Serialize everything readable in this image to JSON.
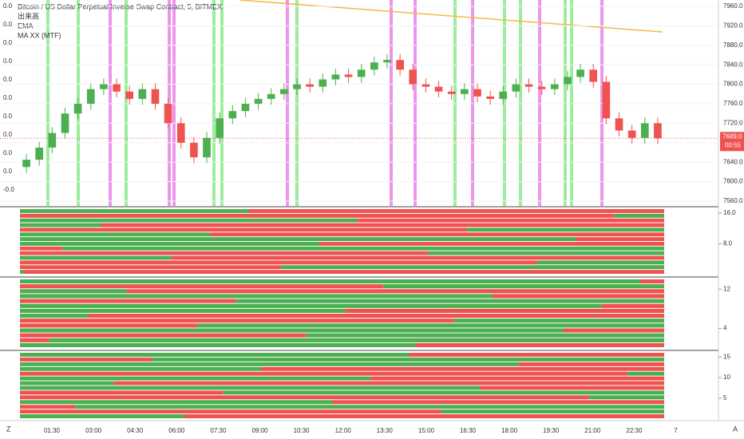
{
  "chart_data": {
    "type": "candlestick",
    "title": "Bitcoin / US Dollar Perpetual Inverse Swap Contract, 5, BITMEX",
    "indicators": [
      "出来高",
      "EMA",
      "MA XX (MTF)"
    ],
    "up_color": "#4caf50",
    "down_color": "#ef5350",
    "open": [
      7630,
      7645,
      7670,
      7700,
      7740,
      7760,
      7790,
      7800,
      7785,
      7770,
      7790,
      7760,
      7720,
      7680,
      7650,
      7690,
      7730,
      7745,
      7760,
      7770,
      7780,
      7790,
      7800,
      7795,
      7810,
      7820,
      7815,
      7830,
      7845,
      7850,
      7830,
      7800,
      7795,
      7785,
      7780,
      7790,
      7775,
      7770,
      7785,
      7800,
      7795,
      7790,
      7800,
      7815,
      7830,
      7805,
      7730,
      7705,
      7690,
      7720
    ],
    "high": [
      7657,
      7682,
      7712,
      7752,
      7772,
      7802,
      7812,
      7812,
      7797,
      7802,
      7802,
      7772,
      7732,
      7692,
      7702,
      7742,
      7757,
      7772,
      7782,
      7792,
      7802,
      7812,
      7812,
      7822,
      7832,
      7832,
      7842,
      7857,
      7862,
      7862,
      7842,
      7812,
      7807,
      7797,
      7802,
      7802,
      7787,
      7797,
      7812,
      7812,
      7807,
      7812,
      7827,
      7842,
      7842,
      7817,
      7742,
      7717,
      7732,
      7732
    ],
    "low": [
      7618,
      7633,
      7658,
      7688,
      7728,
      7748,
      7778,
      7773,
      7758,
      7758,
      7748,
      7708,
      7668,
      7638,
      7638,
      7678,
      7718,
      7733,
      7748,
      7758,
      7768,
      7778,
      7783,
      7783,
      7798,
      7803,
      7803,
      7818,
      7833,
      7818,
      7788,
      7783,
      7773,
      7768,
      7768,
      7763,
      7758,
      7758,
      7773,
      7783,
      7778,
      7778,
      7788,
      7803,
      7793,
      7718,
      7693,
      7678,
      7678,
      7677
    ],
    "close": [
      7645,
      7670,
      7700,
      7740,
      7760,
      7790,
      7800,
      7785,
      7770,
      7790,
      7760,
      7720,
      7680,
      7650,
      7690,
      7730,
      7745,
      7760,
      7770,
      7780,
      7790,
      7800,
      7795,
      7810,
      7820,
      7815,
      7830,
      7845,
      7850,
      7830,
      7800,
      7795,
      7785,
      7780,
      7790,
      7775,
      7770,
      7785,
      7800,
      7795,
      7790,
      7800,
      7815,
      7830,
      7805,
      7730,
      7705,
      7690,
      7720,
      7689
    ],
    "ylim": [
      7560,
      7960
    ],
    "yticks": [
      {
        "value": 7960,
        "label": "7960.0"
      },
      {
        "value": 7920,
        "label": "7920.0"
      },
      {
        "value": 7880,
        "label": "7880.0"
      },
      {
        "value": 7840,
        "label": "7840.0"
      },
      {
        "value": 7800,
        "label": "7800.0"
      },
      {
        "value": 7760,
        "label": "7760.0"
      },
      {
        "value": 7720,
        "label": "7720.0"
      },
      {
        "value": 7680,
        "label": "7680.0"
      },
      {
        "value": 7640,
        "label": "7640.0"
      },
      {
        "value": 7600,
        "label": "7600.0"
      },
      {
        "value": 7560,
        "label": "7560.0"
      }
    ],
    "last_price_label": "7689.0",
    "countdown": "00:55",
    "left_axis_labels": [
      "0.0",
      "0.0",
      "0.0",
      "0.0",
      "0.0",
      "0.0",
      "0.0",
      "0.0",
      "0.0",
      "0.0",
      "-0.0"
    ],
    "time_labels": [
      "01:30",
      "03:00",
      "04:30",
      "06:00",
      "07:30",
      "09:00",
      "10:30",
      "12:00",
      "13:30",
      "15:00",
      "16:30",
      "18:00",
      "19:30",
      "21:00",
      "22:30",
      "7"
    ],
    "panes": [
      {
        "ylim": [
          0,
          17
        ],
        "yticks": [
          {
            "value": 16,
            "label": "16.0"
          },
          {
            "value": 8,
            "label": "8.0"
          }
        ]
      },
      {
        "ylim": [
          0,
          14
        ],
        "yticks": [
          12,
          4
        ]
      },
      {
        "ylim": [
          0,
          16
        ],
        "yticks": [
          15,
          10,
          5
        ]
      }
    ],
    "corner_left": "Z",
    "corner_right": "A"
  }
}
